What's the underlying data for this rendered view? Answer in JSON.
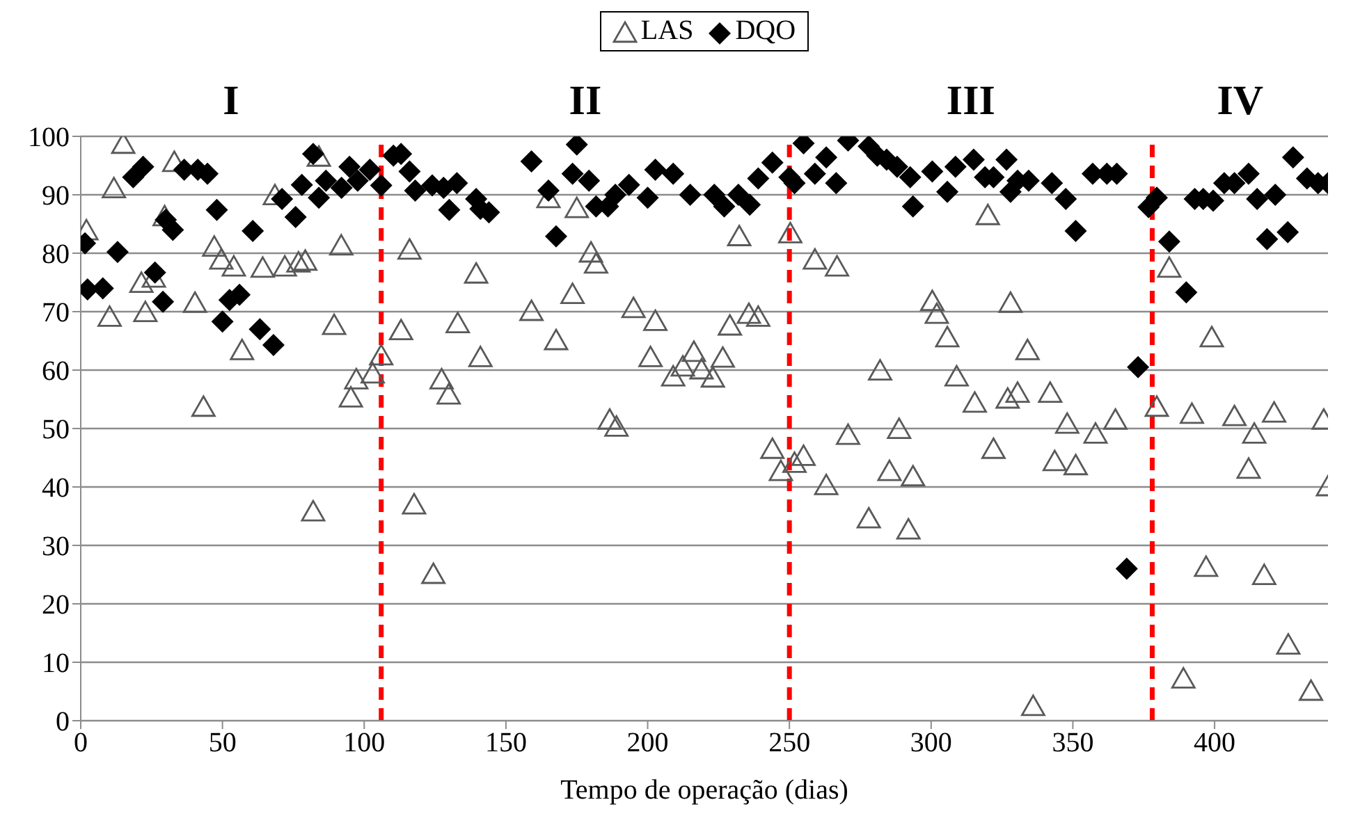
{
  "chart_data": {
    "type": "scatter",
    "xlabel": "Tempo de operação (dias)",
    "xlim": [
      0,
      440
    ],
    "xticks": [
      0,
      50,
      100,
      150,
      200,
      250,
      300,
      350,
      400
    ],
    "ylim": [
      0,
      100
    ],
    "yticks": [
      0,
      10,
      20,
      30,
      40,
      50,
      60,
      70,
      80,
      90,
      100
    ],
    "grid": "y",
    "legend": "top",
    "annotations": [
      "I",
      "II",
      "III",
      "IV"
    ],
    "ref_lines": [
      {
        "axis": "x",
        "value": 106,
        "color": "#ff0000",
        "line_style": "dashed"
      },
      {
        "axis": "x",
        "value": 250,
        "color": "#ff0000",
        "line_style": "dashed"
      },
      {
        "axis": "x",
        "value": 378,
        "color": "#ff0000",
        "line_style": "dashed"
      }
    ],
    "series": [
      {
        "name": "LAS",
        "color": "#595959",
        "marker": "triangle",
        "x": [
          2,
          10.2,
          11.7,
          15,
          21.4,
          22.8,
          25.8,
          29.6,
          33,
          40.3,
          43.3,
          47.1,
          49.6,
          54,
          56.9,
          64.2,
          68.5,
          72,
          76.8,
          79.2,
          82,
          84,
          89.4,
          91.9,
          95.3,
          97.2,
          103,
          106,
          113,
          116,
          117.6,
          124.4,
          127.3,
          129.8,
          133,
          139.5,
          141,
          159,
          165,
          167.7,
          173.5,
          175,
          180,
          181.8,
          186.6,
          189,
          195,
          201,
          202.7,
          209,
          212.4,
          216.3,
          219,
          223,
          226.5,
          229,
          232.3,
          235.7,
          239,
          244,
          247,
          250.3,
          251.8,
          255,
          259,
          263,
          266.8,
          270.7,
          278,
          282,
          285.3,
          288.7,
          292,
          293.6,
          300.4,
          302,
          305.7,
          309,
          315.4,
          320,
          322,
          327,
          328,
          330.5,
          334,
          336,
          342,
          343.6,
          348,
          351,
          358,
          365,
          379.6,
          384,
          389,
          392,
          397,
          399,
          407,
          412,
          414,
          417.5,
          421,
          426,
          434,
          438.5,
          440
        ],
        "values": [
          83.8,
          69,
          91,
          98.6,
          74.8,
          69.8,
          75.7,
          86.2,
          95.5,
          71.4,
          53.6,
          81,
          78.8,
          77.6,
          63.3,
          77.4,
          89.8,
          77.6,
          78.3,
          78.6,
          35.7,
          96.4,
          67.6,
          81.2,
          55.2,
          58.3,
          59.3,
          62.4,
          66.7,
          80.5,
          36.9,
          25,
          58.3,
          55.7,
          67.9,
          76.4,
          62.1,
          70,
          89.3,
          65,
          72.9,
          87.6,
          80,
          78.1,
          51.4,
          50.2,
          70.5,
          62.1,
          68.3,
          58.8,
          60.5,
          63,
          60,
          58.6,
          62,
          67.5,
          82.8,
          69.5,
          69,
          46.4,
          42.6,
          83.3,
          44,
          45.2,
          78.8,
          40.2,
          77.6,
          48.8,
          34.5,
          59.8,
          42.6,
          49.8,
          32.6,
          41.7,
          71.7,
          69.5,
          65.5,
          58.8,
          54.3,
          86.4,
          46.4,
          55,
          71.4,
          56,
          63.3,
          2.4,
          56,
          44.3,
          50.7,
          43.6,
          49,
          51.4,
          53.6,
          77.4,
          7.1,
          52.4,
          26.2,
          65.5,
          52,
          43,
          49,
          24.8,
          52.6,
          12.9,
          5,
          51.4,
          40
        ]
      },
      {
        "name": "DQO",
        "color": "#000000",
        "marker": "diamond",
        "x": [
          1.5,
          2.4,
          7.8,
          13,
          18.5,
          22,
          26.2,
          29,
          30,
          32.5,
          36.5,
          41.3,
          44.7,
          48,
          50,
          52.5,
          56,
          60.7,
          63.2,
          68,
          71,
          75.8,
          78,
          82,
          84,
          86.5,
          92,
          94.8,
          97.7,
          102,
          106,
          110.3,
          113,
          116,
          118,
          124,
          128,
          130,
          132.7,
          139.5,
          141,
          144,
          159,
          165,
          167.7,
          173.5,
          175,
          179.3,
          181.8,
          186,
          188.6,
          193.4,
          200,
          202.7,
          209,
          215,
          223.5,
          227,
          232,
          236,
          239,
          244,
          250,
          251.8,
          255,
          259,
          263,
          266.5,
          270.7,
          278,
          281,
          284.3,
          288,
          292.6,
          293.6,
          300.4,
          305.7,
          308.6,
          315,
          319,
          322,
          326.6,
          328,
          330.5,
          334.4,
          342.6,
          347.5,
          351,
          357,
          362,
          365.5,
          369,
          373,
          376.7,
          379.6,
          384,
          390,
          393,
          396,
          399.5,
          403.4,
          407,
          412,
          415,
          418.5,
          421.4,
          425.8,
          427.7,
          432.6,
          436.5,
          440
        ],
        "values": [
          81.7,
          73.8,
          74,
          80.2,
          93,
          94.8,
          76.7,
          71.7,
          85.7,
          84,
          94.3,
          94.3,
          93.6,
          87.4,
          68.3,
          72,
          72.9,
          83.8,
          67,
          64.3,
          89.3,
          86.2,
          91.7,
          97,
          89.5,
          92.4,
          91.2,
          94.8,
          92.4,
          94.3,
          91.6,
          96.7,
          97,
          94,
          90.7,
          91.6,
          91.2,
          87.4,
          92,
          89.3,
          87.6,
          87,
          95.7,
          90.7,
          82.9,
          93.6,
          98.6,
          92.4,
          88,
          88,
          90,
          91.7,
          89.5,
          94.3,
          93.6,
          90,
          90,
          88,
          90,
          88.3,
          92.8,
          95.5,
          93,
          92,
          98.8,
          93.6,
          96.4,
          92,
          99.3,
          98.3,
          96.7,
          96,
          94.8,
          93,
          88,
          94,
          90.5,
          94.8,
          96,
          93,
          93,
          96,
          90.5,
          92.4,
          92.4,
          92,
          89.3,
          83.8,
          93.6,
          93.6,
          93.6,
          26,
          60.5,
          87.9,
          89.5,
          82,
          73.3,
          89.3,
          89.3,
          89,
          92,
          92,
          93.6,
          89.3,
          82.4,
          90,
          83.6,
          96.4,
          92.8,
          92,
          92
        ]
      }
    ]
  }
}
